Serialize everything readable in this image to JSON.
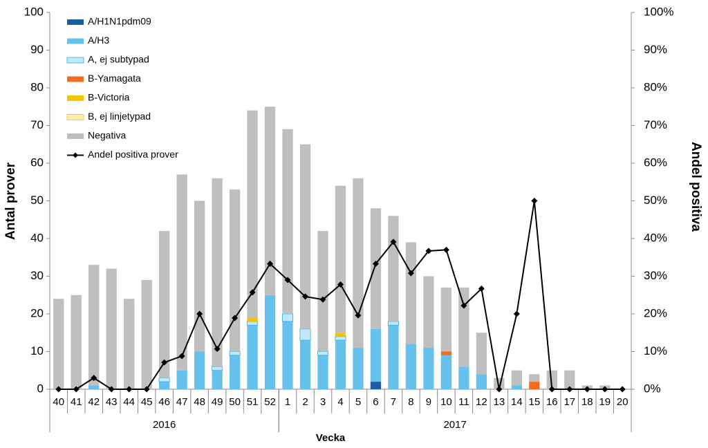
{
  "chart_data": {
    "type": "bar",
    "stacked": true,
    "ylabel": "Antal prover",
    "y2label": "Andel positiva",
    "xlabel": "Vecka",
    "categories": [
      "40",
      "41",
      "42",
      "43",
      "44",
      "45",
      "46",
      "47",
      "48",
      "49",
      "50",
      "51",
      "52",
      "1",
      "2",
      "3",
      "4",
      "5",
      "6",
      "7",
      "8",
      "9",
      "10",
      "11",
      "12",
      "13",
      "14",
      "15",
      "16",
      "17",
      "18",
      "19",
      "20"
    ],
    "category_groups": [
      {
        "label": "2016",
        "count": 13
      },
      {
        "label": "2017",
        "count": 20
      }
    ],
    "ylim": [
      0,
      100
    ],
    "yticks": [
      0,
      10,
      20,
      30,
      40,
      50,
      60,
      70,
      80,
      90,
      100
    ],
    "y2lim": [
      0,
      100
    ],
    "y2ticks": [
      {
        "value": 0,
        "label": "0%"
      },
      {
        "value": 10,
        "label": "10%"
      },
      {
        "value": 20,
        "label": "20%"
      },
      {
        "value": 30,
        "label": "30%"
      },
      {
        "value": 40,
        "label": "40%"
      },
      {
        "value": 50,
        "label": "50%"
      },
      {
        "value": 60,
        "label": "60%"
      },
      {
        "value": 70,
        "label": "70%"
      },
      {
        "value": 80,
        "label": "80%"
      },
      {
        "value": 90,
        "label": "90%"
      },
      {
        "value": 100,
        "label": "100%"
      }
    ],
    "legend": "upper left",
    "series": [
      {
        "name": "A/H1N1pdm09",
        "color": "#1a5fa3",
        "values": [
          0,
          0,
          0,
          0,
          0,
          0,
          0,
          0,
          0,
          0,
          0,
          0,
          0,
          0,
          0,
          0,
          0,
          0,
          2,
          0,
          0,
          0,
          0,
          0,
          0,
          0,
          0,
          0,
          0,
          0,
          0,
          0,
          0
        ]
      },
      {
        "name": "A/H3",
        "color": "#66c1ed",
        "values": [
          0,
          0,
          1,
          0,
          0,
          0,
          2,
          5,
          10,
          5,
          9,
          17,
          25,
          18,
          13,
          9,
          13,
          11,
          14,
          17,
          12,
          11,
          9,
          6,
          4,
          0,
          1,
          0,
          0,
          0,
          0,
          0,
          0
        ]
      },
      {
        "name": "A, ej subtypad",
        "color": "#bfe8f8",
        "edge": "#3aa8dc",
        "values": [
          0,
          0,
          0,
          0,
          0,
          0,
          1,
          0,
          0,
          1,
          1,
          1,
          0,
          2,
          3,
          1,
          1,
          0,
          0,
          1,
          0,
          0,
          0,
          0,
          0,
          0,
          0,
          0,
          0,
          0,
          0,
          0,
          0
        ]
      },
      {
        "name": "B-Yamagata",
        "color": "#f26b1d",
        "values": [
          0,
          0,
          0,
          0,
          0,
          0,
          0,
          0,
          0,
          0,
          0,
          0,
          0,
          0,
          0,
          0,
          0,
          0,
          0,
          0,
          0,
          0,
          1,
          0,
          0,
          0,
          0,
          2,
          0,
          0,
          0,
          0,
          0
        ]
      },
      {
        "name": "B-Victoria",
        "color": "#f5c400",
        "values": [
          0,
          0,
          0,
          0,
          0,
          0,
          0,
          0,
          0,
          0,
          0,
          1,
          0,
          0,
          0,
          0,
          1,
          0,
          0,
          0,
          0,
          0,
          0,
          0,
          0,
          0,
          0,
          0,
          0,
          0,
          0,
          0,
          0
        ]
      },
      {
        "name": "B, ej linjetypad",
        "color": "#ffeeaa",
        "edge": "#e8c64a",
        "values": [
          0,
          0,
          0,
          0,
          0,
          0,
          0,
          0,
          0,
          0,
          0,
          0,
          0,
          0,
          0,
          0,
          0,
          0,
          0,
          0,
          0,
          0,
          0,
          0,
          0,
          0,
          0,
          0,
          0,
          0,
          0,
          0,
          0
        ]
      },
      {
        "name": "Negativa",
        "color": "#bfbfbf",
        "values": [
          24,
          25,
          32,
          32,
          24,
          29,
          39,
          52,
          40,
          50,
          43,
          55,
          50,
          49,
          49,
          32,
          39,
          45,
          32,
          28,
          27,
          19,
          17,
          21,
          11,
          3,
          4,
          2,
          5,
          5,
          1,
          1,
          0
        ]
      },
      {
        "name": "Andel positiva prover",
        "type": "line",
        "axis": "y2",
        "color": "#000000",
        "values": [
          0,
          0,
          3,
          0,
          0,
          0,
          7.1,
          8.8,
          20,
          10.7,
          18.9,
          25.7,
          33.3,
          29,
          24.6,
          23.8,
          27.8,
          19.6,
          33.3,
          39.1,
          30.8,
          36.7,
          37,
          22.2,
          26.7,
          0,
          20,
          50,
          0,
          0,
          0,
          0,
          0
        ]
      }
    ]
  }
}
